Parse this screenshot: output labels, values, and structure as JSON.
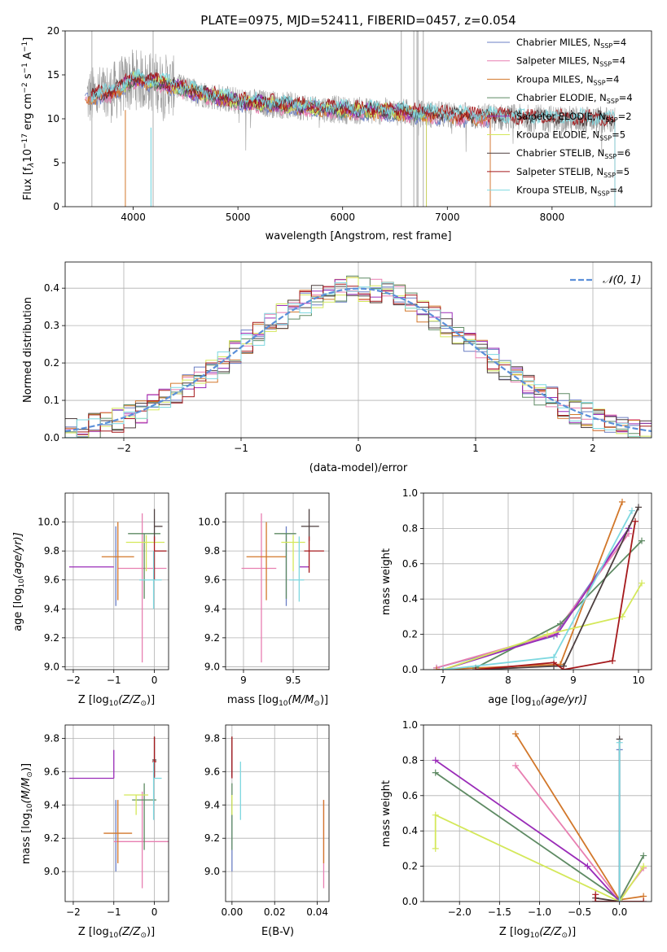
{
  "figure_title": "PLATE=0975, MJD=52411, FIBERID=0457, z=0.054",
  "colors": {
    "Chabrier MILES": "#6b7fc4",
    "Salpeter MILES": "#e87fb1",
    "Kroupa MILES": "#d2772a",
    "Chabrier ELODIE": "#5e8a63",
    "Salpeter ELODIE": "#9a2cb8",
    "Kroupa ELODIE": "#d4e85a",
    "Chabrier STELIB": "#4d3f3f",
    "Salpeter STELIB": "#a5191c",
    "Kroupa STELIB": "#7ed8e0",
    "normal": "#5b8fd9"
  },
  "chart_data": [
    {
      "id": "spectrum",
      "type": "line",
      "xlabel": "wavelength [Angstrom, rest frame]",
      "ylabel": "Flux [f",
      "ylabel_parts": {
        "lambda": "λ",
        "mid": "10",
        "exp1": "−17",
        "units": " erg cm",
        "exp2": "−2",
        "s": " s",
        "exp3": "−1",
        "A": " A",
        "exp4": "−1",
        "end": "]"
      },
      "xlim": [
        3350,
        8950
      ],
      "ylim": [
        0,
        20
      ],
      "xticks": [
        4000,
        5000,
        6000,
        7000,
        8000
      ],
      "yticks": [
        0,
        5,
        10,
        15,
        20
      ],
      "data_series": {
        "name": "data",
        "color": "#aaaaaa"
      },
      "legend": [
        {
          "model": "Chabrier MILES",
          "n": "4"
        },
        {
          "model": "Salpeter MILES",
          "n": "4"
        },
        {
          "model": "Kroupa MILES",
          "n": "4"
        },
        {
          "model": "Chabrier ELODIE",
          "n": "4"
        },
        {
          "model": "Salpeter ELODIE",
          "n": "2"
        },
        {
          "model": "Kroupa ELODIE",
          "n": "5"
        },
        {
          "model": "Chabrier STELIB",
          "n": "6"
        },
        {
          "model": "Salpeter STELIB",
          "n": "5"
        },
        {
          "model": "Kroupa STELIB",
          "n": "4"
        }
      ],
      "legend_nssp": "N",
      "legend_nssp_sub": "SSP",
      "legend_placement": "upper right",
      "continuum": {
        "x": [
          3600,
          3800,
          4000,
          4300,
          4600,
          5000,
          5500,
          6000,
          6500,
          7000,
          7400,
          8000,
          8600
        ],
        "y": [
          12.5,
          13.0,
          14.5,
          14.0,
          13.0,
          12.0,
          11.5,
          11.0,
          10.8,
          10.4,
          10.2,
          10.0,
          9.8
        ]
      },
      "model_ranges": [
        {
          "model": "Chabrier MILES",
          "x": [
            3540,
            7410
          ]
        },
        {
          "model": "Salpeter MILES",
          "x": [
            3540,
            7410
          ]
        },
        {
          "model": "Kroupa MILES",
          "x": [
            3540,
            7410
          ]
        },
        {
          "model": "Chabrier ELODIE",
          "x": [
            3900,
            6800
          ]
        },
        {
          "model": "Salpeter ELODIE",
          "x": [
            3900,
            6800
          ]
        },
        {
          "model": "Kroupa ELODIE",
          "x": [
            3900,
            6800
          ]
        },
        {
          "model": "Chabrier STELIB",
          "x": [
            3600,
            8600
          ]
        },
        {
          "model": "Salpeter STELIB",
          "x": [
            3600,
            8600
          ]
        },
        {
          "model": "Kroupa STELIB",
          "x": [
            3600,
            8600
          ]
        }
      ]
    },
    {
      "id": "residuals",
      "type": "histogram",
      "xlabel": "(data-model)/error",
      "ylabel": "Normed distribution",
      "xlim": [
        -2.5,
        2.5
      ],
      "ylim": [
        0,
        0.47
      ],
      "xticks": [
        -2,
        -1,
        0,
        1,
        2
      ],
      "yticks": [
        0.0,
        0.1,
        0.2,
        0.3,
        0.4
      ],
      "grid": true,
      "legend": "𝒩(0, 1)",
      "legend_placement": "upper right",
      "bin_width": 0.1,
      "bin_start": -2.5,
      "reference_curve": "normal pdf, mean 0, sigma 1"
    },
    {
      "id": "age_vs_Z",
      "type": "errorbar",
      "xlabel": "Z [log",
      "xlabel_tail": "(Z/Z",
      "ylabel": "age  [log",
      "ylabel_tail": "(age/yr)]",
      "xlim": [
        -2.2,
        0.35
      ],
      "ylim": [
        8.98,
        10.2
      ],
      "xticks": [
        -2,
        -1,
        0
      ],
      "yticks": [
        9.0,
        9.2,
        9.4,
        9.6,
        9.8,
        10.0
      ],
      "points": [
        {
          "model": "Chabrier MILES",
          "x": -0.95,
          "xerr": [
            0,
            0
          ],
          "y": 9.97,
          "yerr": [
            0.55,
            0.0
          ]
        },
        {
          "model": "Salpeter MILES",
          "x": -0.3,
          "xerr": [
            0.6,
            0.6
          ],
          "y": 9.68,
          "yerr": [
            0.65,
            0.38
          ]
        },
        {
          "model": "Kroupa MILES",
          "x": -0.9,
          "xerr": [
            0.4,
            0.4
          ],
          "y": 9.76,
          "yerr": [
            0.3,
            0.24
          ]
        },
        {
          "model": "Chabrier ELODIE",
          "x": -0.25,
          "xerr": [
            0.4,
            0.4
          ],
          "y": 9.92,
          "yerr": [
            0.45,
            0.0
          ]
        },
        {
          "model": "Salpeter ELODIE",
          "x": -1.0,
          "xerr": [
            1.1,
            0
          ],
          "y": 9.69,
          "yerr": [
            0,
            0
          ]
        },
        {
          "model": "Kroupa ELODIE",
          "x": -0.2,
          "xerr": [
            0.5,
            0.45
          ],
          "y": 9.86,
          "yerr": [
            0.2,
            0.05
          ]
        },
        {
          "model": "Chabrier STELIB",
          "x": 0.0,
          "xerr": [
            0,
            0.2
          ],
          "y": 9.97,
          "yerr": [
            0.1,
            0.12
          ]
        },
        {
          "model": "Salpeter STELIB",
          "x": 0.0,
          "xerr": [
            0,
            0.3
          ],
          "y": 9.8,
          "yerr": [
            0.2,
            0.1
          ]
        },
        {
          "model": "Kroupa STELIB",
          "x": -0.02,
          "xerr": [
            0.35,
            0.2
          ],
          "y": 9.6,
          "yerr": [
            0.2,
            0.2
          ]
        }
      ]
    },
    {
      "id": "age_vs_mass",
      "type": "errorbar",
      "xlabel": "mass [log",
      "xlabel_tail": "(M/M",
      "ylabel": "",
      "xlim": [
        8.82,
        9.86
      ],
      "ylim": [
        8.98,
        10.2
      ],
      "xticks": [
        9.0,
        9.5
      ],
      "yticks": [
        9.0,
        9.2,
        9.4,
        9.6,
        9.8,
        10.0
      ],
      "points": [
        {
          "model": "Chabrier MILES",
          "x": 9.43,
          "xerr": [
            0,
            0
          ],
          "y": 9.97,
          "yerr": [
            0.55,
            0.0
          ]
        },
        {
          "model": "Salpeter MILES",
          "x": 9.18,
          "xerr": [
            0.2,
            0.15
          ],
          "y": 9.68,
          "yerr": [
            0.65,
            0.38
          ]
        },
        {
          "model": "Kroupa MILES",
          "x": 9.23,
          "xerr": [
            0.2,
            0.2
          ],
          "y": 9.76,
          "yerr": [
            0.3,
            0.24
          ]
        },
        {
          "model": "Chabrier ELODIE",
          "x": 9.43,
          "xerr": [
            0.12,
            0.1
          ],
          "y": 9.92,
          "yerr": [
            0.45,
            0.0
          ]
        },
        {
          "model": "Salpeter ELODIE",
          "x": 9.56,
          "xerr": [
            0,
            0.1
          ],
          "y": 9.69,
          "yerr": [
            0.0,
            0.0
          ]
        },
        {
          "model": "Kroupa ELODIE",
          "x": 9.5,
          "xerr": [
            0.12,
            0.12
          ],
          "y": 9.86,
          "yerr": [
            0.2,
            0.05
          ]
        },
        {
          "model": "Chabrier STELIB",
          "x": 9.66,
          "xerr": [
            0.08,
            0.1
          ],
          "y": 9.97,
          "yerr": [
            0.1,
            0.12
          ]
        },
        {
          "model": "Salpeter STELIB",
          "x": 9.66,
          "xerr": [
            0.05,
            0.15
          ],
          "y": 9.8,
          "yerr": [
            0.15,
            0.1
          ]
        },
        {
          "model": "Kroupa STELIB",
          "x": 9.56,
          "xerr": [
            0.1,
            0.05
          ],
          "y": 9.6,
          "yerr": [
            0.15,
            0.3
          ]
        }
      ]
    },
    {
      "id": "weight_vs_age",
      "type": "line",
      "xlabel": "age  [log",
      "xlabel_tail": "(age/yr)]",
      "ylabel": "mass weight",
      "xlim": [
        6.7,
        10.2
      ],
      "ylim": [
        0,
        1.0
      ],
      "xticks": [
        7,
        8,
        9,
        10
      ],
      "yticks": [
        0.0,
        0.2,
        0.4,
        0.6,
        0.8,
        1.0
      ],
      "series": [
        {
          "model": "Chabrier MILES",
          "x": [
            6.9,
            8.7,
            9.85
          ],
          "y": [
            0.01,
            0.19,
            0.8
          ]
        },
        {
          "model": "Salpeter MILES",
          "x": [
            6.9,
            8.7,
            9.85
          ],
          "y": [
            0.01,
            0.2,
            0.77
          ]
        },
        {
          "model": "Kroupa MILES",
          "x": [
            6.9,
            8.8,
            9.75
          ],
          "y": [
            0.0,
            0.03,
            0.95
          ]
        },
        {
          "model": "Chabrier ELODIE",
          "x": [
            7.5,
            8.8,
            10.05
          ],
          "y": [
            0.01,
            0.26,
            0.73
          ]
        },
        {
          "model": "Salpeter ELODIE",
          "x": [
            7.0,
            8.75,
            9.85
          ],
          "y": [
            0.0,
            0.2,
            0.8
          ]
        },
        {
          "model": "Kroupa ELODIE",
          "x": [
            7.0,
            8.6,
            9.75,
            10.05
          ],
          "y": [
            0.0,
            0.2,
            0.3,
            0.49
          ]
        },
        {
          "model": "Chabrier STELIB",
          "x": [
            7.5,
            8.7,
            8.85,
            10.0
          ],
          "y": [
            0.0,
            0.02,
            0.02,
            0.92
          ]
        },
        {
          "model": "Salpeter STELIB",
          "x": [
            7.5,
            8.7,
            8.85,
            9.6,
            9.95
          ],
          "y": [
            0.0,
            0.04,
            0.0,
            0.05,
            0.84
          ]
        },
        {
          "model": "Kroupa STELIB",
          "x": [
            7.0,
            8.7,
            9.9
          ],
          "y": [
            0.0,
            0.07,
            0.9
          ]
        }
      ]
    },
    {
      "id": "mass_vs_Z",
      "type": "errorbar",
      "xlabel": "Z [log",
      "xlabel_tail": "(Z/Z",
      "ylabel": "mass [log",
      "ylabel_tail": "(M/M",
      "xlim": [
        -2.2,
        0.35
      ],
      "ylim": [
        8.82,
        9.88
      ],
      "xticks": [
        -2,
        -1,
        0
      ],
      "yticks": [
        9.0,
        9.2,
        9.4,
        9.6,
        9.8
      ],
      "points": [
        {
          "model": "Chabrier MILES",
          "x": -0.95,
          "xerr": [
            0,
            0
          ],
          "y": 9.2,
          "yerr": [
            0.2,
            0.23
          ]
        },
        {
          "model": "Salpeter MILES",
          "x": -0.3,
          "xerr": [
            0.7,
            0.65
          ],
          "y": 9.18,
          "yerr": [
            0.28,
            0.3
          ]
        },
        {
          "model": "Kroupa MILES",
          "x": -0.9,
          "xerr": [
            0.35,
            0.35
          ],
          "y": 9.23,
          "yerr": [
            0.18,
            0.2
          ]
        },
        {
          "model": "Chabrier ELODIE",
          "x": -0.25,
          "xerr": [
            0.3,
            0.3
          ],
          "y": 9.43,
          "yerr": [
            0.3,
            0.1
          ]
        },
        {
          "model": "Salpeter ELODIE",
          "x": -1.0,
          "xerr": [
            1.1,
            0.0
          ],
          "y": 9.56,
          "yerr": [
            0.0,
            0.17
          ]
        },
        {
          "model": "Kroupa ELODIE",
          "x": -0.45,
          "xerr": [
            0.3,
            0.3
          ],
          "y": 9.46,
          "yerr": [
            0.12,
            0.0
          ]
        },
        {
          "model": "Chabrier STELIB",
          "x": 0.0,
          "xerr": [
            0.05,
            0.05
          ],
          "y": 9.67,
          "yerr": [
            0.1,
            0.14
          ]
        },
        {
          "model": "Salpeter STELIB",
          "x": 0.0,
          "xerr": [
            0.05,
            0.05
          ],
          "y": 9.66,
          "yerr": [
            0.1,
            0.15
          ]
        },
        {
          "model": "Kroupa STELIB",
          "x": -0.02,
          "xerr": [
            0.0,
            0.2
          ],
          "y": 9.56,
          "yerr": [
            0.25,
            0.1
          ]
        }
      ]
    },
    {
      "id": "mass_vs_ebv",
      "type": "errorbar",
      "xlabel": "E(B-V)",
      "ylabel": "",
      "xlim": [
        -0.003,
        0.0455
      ],
      "ylim": [
        8.82,
        9.88
      ],
      "xticks": [
        0.0,
        0.02,
        0.04
      ],
      "xticklabels": [
        "0.00",
        "0.02",
        "0.04"
      ],
      "yticks": [
        9.0,
        9.2,
        9.4,
        9.6,
        9.8
      ],
      "points": [
        {
          "model": "Chabrier MILES",
          "x": 0.0,
          "y": 9.2,
          "yerr": [
            0.2,
            0.23
          ]
        },
        {
          "model": "Salpeter MILES",
          "x": 0.043,
          "y": 9.18,
          "yerr": [
            0.28,
            0.25
          ]
        },
        {
          "model": "Kroupa MILES",
          "x": 0.043,
          "y": 9.23,
          "yerr": [
            0.18,
            0.2
          ]
        },
        {
          "model": "Chabrier ELODIE",
          "x": 0.0,
          "y": 9.43,
          "yerr": [
            0.3,
            0.1
          ]
        },
        {
          "model": "Salpeter ELODIE",
          "x": 0.0,
          "y": 9.56,
          "yerr": [
            0.0,
            0.17
          ]
        },
        {
          "model": "Kroupa ELODIE",
          "x": 0.0,
          "y": 9.46,
          "yerr": [
            0.12,
            0.0
          ]
        },
        {
          "model": "Chabrier STELIB",
          "x": 0.0,
          "y": 9.67,
          "yerr": [
            0.1,
            0.14
          ]
        },
        {
          "model": "Salpeter STELIB",
          "x": 0.0,
          "y": 9.66,
          "yerr": [
            0.1,
            0.15
          ]
        },
        {
          "model": "Kroupa STELIB",
          "x": 0.004,
          "y": 9.56,
          "yerr": [
            0.25,
            0.1
          ]
        }
      ]
    },
    {
      "id": "weight_vs_Z",
      "type": "line",
      "xlabel": "Z [log",
      "xlabel_tail": "(Z/Z",
      "ylabel": "mass weight",
      "xlim": [
        -2.45,
        0.4
      ],
      "ylim": [
        0,
        1.0
      ],
      "xticks": [
        -2.0,
        -1.5,
        -1.0,
        -0.5,
        0.0
      ],
      "xticklabels": [
        "−2.0",
        "−1.5",
        "−1.0",
        "−0.5",
        "0.0"
      ],
      "yticks": [
        0.0,
        0.2,
        0.4,
        0.6,
        0.8,
        1.0
      ],
      "series": [
        {
          "model": "Chabrier MILES",
          "x": [
            -0.3,
            0.0,
            0.0
          ],
          "y": [
            0.0,
            0.0,
            0.86
          ]
        },
        {
          "model": "Salpeter MILES",
          "x": [
            -1.3,
            0.0,
            0.3
          ],
          "y": [
            0.77,
            0.01,
            0.19
          ]
        },
        {
          "model": "Kroupa MILES",
          "x": [
            -1.3,
            0.0,
            0.3
          ],
          "y": [
            0.95,
            0.01,
            0.03
          ]
        },
        {
          "model": "Chabrier ELODIE",
          "x": [
            -2.3,
            0.0,
            0.3
          ],
          "y": [
            0.73,
            0.01,
            0.26
          ]
        },
        {
          "model": "Salpeter ELODIE",
          "x": [
            -2.3,
            -0.4,
            0.0
          ],
          "y": [
            0.8,
            0.2,
            0.0
          ]
        },
        {
          "model": "Kroupa ELODIE",
          "x": [
            -2.3,
            -2.3,
            0.0,
            0.3
          ],
          "y": [
            0.3,
            0.49,
            0.0,
            0.2
          ]
        },
        {
          "model": "Chabrier STELIB",
          "x": [
            -0.3,
            0.0,
            0.0
          ],
          "y": [
            0.02,
            0.0,
            0.92
          ]
        },
        {
          "model": "Salpeter STELIB",
          "x": [
            -0.3,
            -0.3,
            0.0,
            0.3
          ],
          "y": [
            0.04,
            0.0,
            0.0,
            0.0
          ]
        },
        {
          "model": "Kroupa STELIB",
          "x": [
            0.0,
            0.0
          ],
          "y": [
            0.0,
            0.9
          ]
        }
      ]
    }
  ]
}
